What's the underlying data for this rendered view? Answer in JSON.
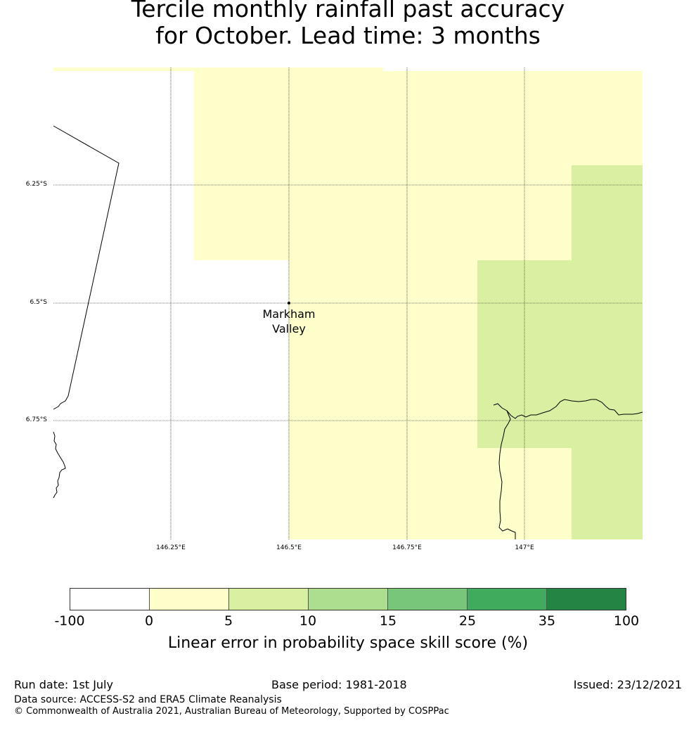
{
  "title": {
    "line1": "Tercile monthly rainfall past accuracy",
    "line2": "for October. Lead time: 3 months"
  },
  "map": {
    "lat_labels": [
      "6.25°S",
      "6.5°S",
      "6.75°S"
    ],
    "lon_labels": [
      "146.25°E",
      "146.5°E",
      "146.75°E",
      "147°E"
    ],
    "place_name_line1": "Markham",
    "place_name_line2": "Valley",
    "skill_cells": [
      {
        "lon": [
          146.0,
          146.25
        ],
        "lat": [
          -6.0,
          -6.5
        ],
        "value": "no-skill"
      },
      {
        "lon": [
          146.3,
          146.5
        ],
        "lat": [
          -6.0,
          -6.16
        ],
        "value": "0-5"
      },
      {
        "lon": [
          146.5,
          146.88
        ],
        "lat": [
          -6.0,
          -7.0
        ],
        "value": "0-5"
      },
      {
        "lon": [
          146.88,
          147.1
        ],
        "lat": [
          -6.0,
          -6.2
        ],
        "value": "0-5"
      },
      {
        "lon": [
          147.1,
          147.25
        ],
        "lat": [
          -6.0,
          -6.2
        ],
        "value": "0-5"
      },
      {
        "lon": [
          146.88,
          147.1
        ],
        "lat": [
          -6.41,
          -6.8
        ],
        "value": "5-10"
      },
      {
        "lon": [
          147.1,
          147.25
        ],
        "lat": [
          -6.2,
          -7.0
        ],
        "value": "5-10"
      }
    ]
  },
  "colorbar": {
    "ticks": [
      "-100",
      "0",
      "5",
      "10",
      "15",
      "25",
      "35",
      "100"
    ],
    "colors": [
      "#ffffff",
      "#ffffcc",
      "#d9f0a3",
      "#addd8e",
      "#78c679",
      "#41ab5d",
      "#238443"
    ],
    "label": "Linear error in probability space skill score (%)"
  },
  "footer": {
    "run_date": "Run date: 1st July",
    "base_period": "Base period: 1981-2018",
    "issued": "Issued: 23/12/2021",
    "data_source": "Data source: ACCESS-S2 and ERA5 Climate Reanalysis",
    "copyright": "© Commonwealth of Australia 2021, Australian Bureau of Meteorology, Supported by COSPPac"
  }
}
